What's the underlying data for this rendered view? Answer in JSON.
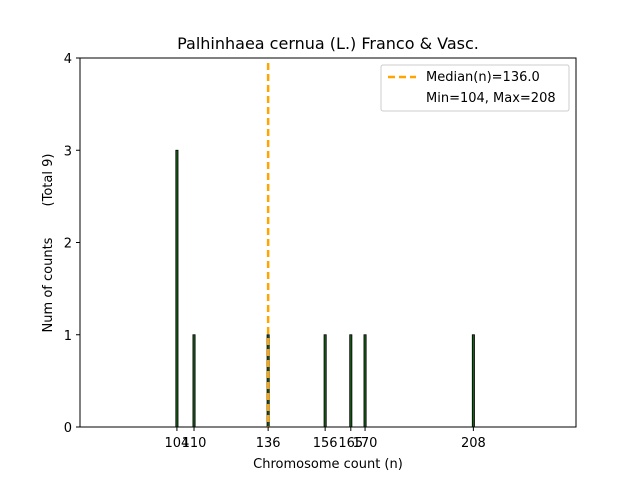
{
  "chart_data": {
    "type": "bar",
    "title": "Palhinhaea cernua (L.) Franco & Vasc.",
    "xlabel": "Chromosome count (n)",
    "ylabel": "Num of counts",
    "ylabel_secondary": "(Total 9)",
    "xlim": [
      70,
      244
    ],
    "ylim": [
      0,
      4
    ],
    "x_ticks": [
      104,
      110,
      136,
      156,
      165,
      170,
      208
    ],
    "x_tick_labels": [
      "104",
      "110",
      "136",
      "156",
      "165",
      "170",
      "208"
    ],
    "y_ticks": [
      0,
      1,
      2,
      3,
      4
    ],
    "y_tick_labels": [
      "0",
      "1",
      "2",
      "3",
      "4"
    ],
    "bars": [
      {
        "x": 104,
        "count": 3
      },
      {
        "x": 110,
        "count": 1
      },
      {
        "x": 136,
        "count": 1
      },
      {
        "x": 156,
        "count": 1
      },
      {
        "x": 165,
        "count": 1
      },
      {
        "x": 170,
        "count": 1
      },
      {
        "x": 208,
        "count": 1
      }
    ],
    "bar_color": "#1a5c1a",
    "bar_edge_color": "#000000",
    "median": 136.0,
    "median_color": "#ffa500",
    "legend": {
      "placement": "top-right",
      "median_label": "Median(n)=136.0",
      "minmax_label": "Min=104, Max=208"
    },
    "grid": false
  }
}
